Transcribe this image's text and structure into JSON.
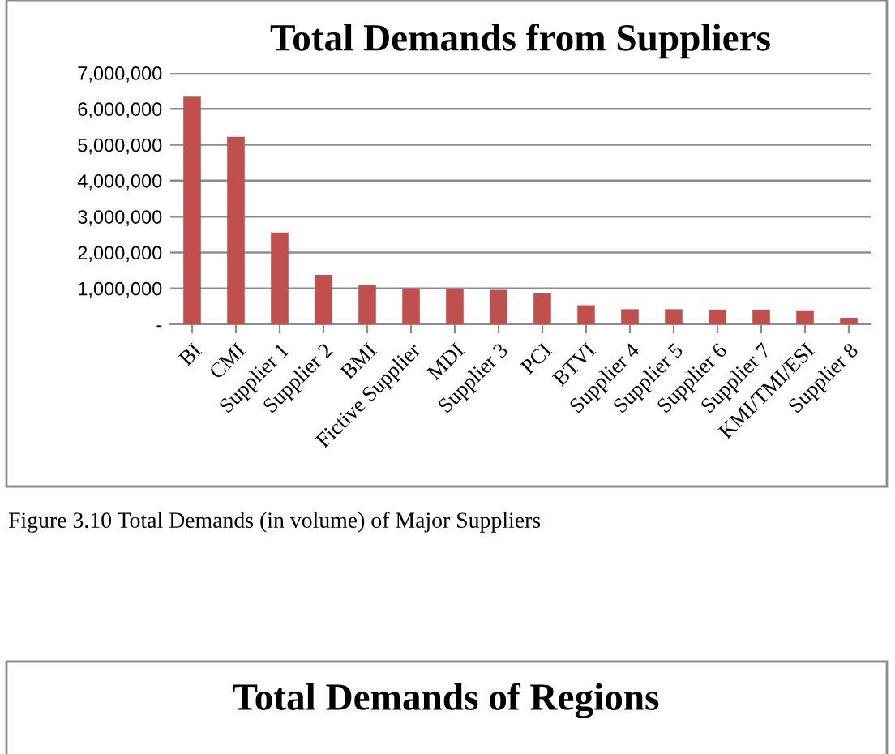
{
  "chart_data": [
    {
      "type": "bar",
      "title": "Total Demands from Suppliers",
      "categories": [
        "BI",
        "CMI",
        "Supplier 1",
        "Supplier 2",
        "BMI",
        "Fictive Supplier",
        "MDI",
        "Supplier 3",
        "PCI",
        "BTVI",
        "Supplier 4",
        "Supplier 5",
        "Supplier 6",
        "Supplier 7",
        "KMI/TMI/ESI",
        "Supplier 8"
      ],
      "values": [
        6340000,
        5220000,
        2560000,
        1380000,
        1090000,
        1000000,
        990000,
        960000,
        860000,
        530000,
        420000,
        420000,
        410000,
        410000,
        390000,
        180000
      ],
      "color": "#c0504d",
      "ylim": [
        0,
        7000000
      ],
      "yticks": [
        {
          "value": 0,
          "label": "-"
        },
        {
          "value": 1000000,
          "label": "1,000,000"
        },
        {
          "value": 2000000,
          "label": "2,000,000"
        },
        {
          "value": 3000000,
          "label": "3,000,000"
        },
        {
          "value": 4000000,
          "label": "4,000,000"
        },
        {
          "value": 5000000,
          "label": "5,000,000"
        },
        {
          "value": 6000000,
          "label": "6,000,000"
        },
        {
          "value": 7000000,
          "label": "7,000,000"
        }
      ],
      "grid": "y",
      "annotations": [
        "Figure 3.10 Total Demands (in volume) of Major Suppliers"
      ]
    },
    {
      "type": "other",
      "title": "Total Demands of Regions"
    }
  ]
}
